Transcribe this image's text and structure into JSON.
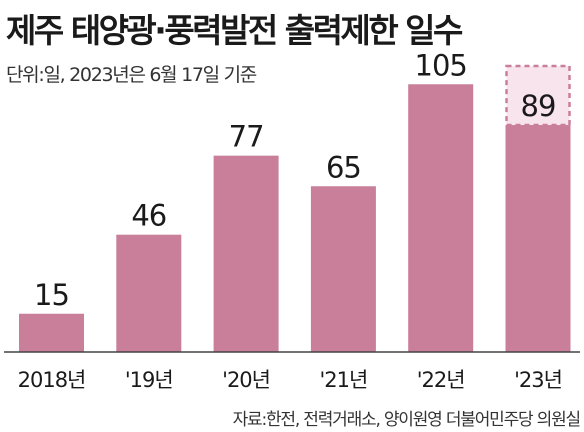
{
  "header": {
    "title": "제주 태양광·풍력발전 출력제한 일수",
    "subtitle": "단위:일, 2023년은 6월 17일 기준"
  },
  "footer": {
    "source": "자료:한전, 전력거래소, 양이원영 더불어민주당 의원실"
  },
  "colors": {
    "bar": "#c97e99",
    "projection_outline": "#c97e99",
    "projection_fill": "#f8e4ec",
    "baseline": "#444444"
  },
  "chart_data": {
    "type": "bar",
    "categories": [
      "2018년",
      "'19년",
      "'20년",
      "'21년",
      "'22년",
      "'23년"
    ],
    "values": [
      15,
      46,
      77,
      65,
      105,
      89
    ],
    "title": "제주 태양광·풍력발전 출력제한 일수",
    "subtitle": "단위:일, 2023년은 6월 17일 기준",
    "xlabel": "",
    "ylabel": "",
    "ylim": [
      0,
      125
    ],
    "grid": false,
    "legend": "none",
    "projection": {
      "category": "'23년",
      "style": "dashed outline"
    }
  }
}
